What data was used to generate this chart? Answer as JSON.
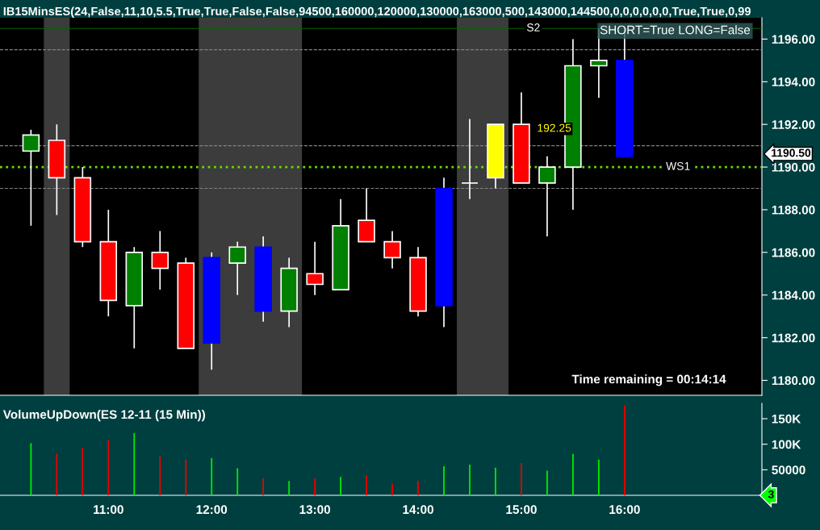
{
  "chart_data": [
    {
      "type": "candlestick",
      "title": "IB15MinsES(24,False,11,10,5.5,True,True,False,False,94500,160000,120000,130000,163000,500,143000,144500,0,0,0,0,0,0,True,True,0,99",
      "x": [
        10.25,
        10.5,
        10.75,
        11,
        11.25,
        11.5,
        11.75,
        12,
        12.25,
        12.5,
        12.75,
        13,
        13.25,
        13.5,
        13.75,
        14,
        14.25,
        14.5,
        14.75,
        15,
        15.25,
        15.5,
        15.75,
        16
      ],
      "ohlc": [
        [
          1190.75,
          1191.75,
          1187.25,
          1191.5
        ],
        [
          1191.25,
          1192,
          1187.75,
          1189.5
        ],
        [
          1189.5,
          1190,
          1186.25,
          1186.5
        ],
        [
          1186.5,
          1188,
          1183,
          1183.75
        ],
        [
          1183.5,
          1186.25,
          1181.5,
          1186
        ],
        [
          1186,
          1187,
          1184.25,
          1185.25
        ],
        [
          1185.5,
          1185.75,
          1181.5,
          1181.5
        ],
        [
          1181.75,
          1186,
          1180.5,
          1185.75
        ],
        [
          1185.5,
          1186.5,
          1184,
          1186.25
        ],
        [
          1186.25,
          1186.75,
          1182.75,
          1183.25
        ],
        [
          1183.25,
          1185.75,
          1182.5,
          1185.25
        ],
        [
          1185,
          1186.5,
          1184,
          1184.5
        ],
        [
          1184.25,
          1188.5,
          1184.25,
          1187.25
        ],
        [
          1187.5,
          1189,
          1186.5,
          1186.5
        ],
        [
          1186.5,
          1187,
          1185.25,
          1185.75
        ],
        [
          1185.75,
          1186.25,
          1183,
          1183.25
        ],
        [
          1183.5,
          1189.5,
          1182.5,
          1189
        ],
        [
          1189.25,
          1192.25,
          1188.5,
          1189.25
        ],
        [
          1189.5,
          1192,
          1189,
          1192
        ],
        [
          1192,
          1193.5,
          1189.25,
          1189.25
        ],
        [
          1189.25,
          1190.5,
          1186.75,
          1190
        ],
        [
          1190,
          1196,
          1188,
          1194.75
        ],
        [
          1194.75,
          1196.5,
          1193.25,
          1195
        ],
        [
          1195,
          1196.5,
          1190.5,
          1190.5
        ]
      ],
      "colors": [
        "#008000",
        "#ff0000",
        "#ff0000",
        "#ff0000",
        "#008000",
        "#ff0000",
        "#ff0000",
        "#0000ff",
        "#008000",
        "#0000ff",
        "#008000",
        "#ff0000",
        "#008000",
        "#ff0000",
        "#ff0000",
        "#ff0000",
        "#0000ff",
        "#ffffff",
        "#ffff00",
        "#ff0000",
        "#008000",
        "#008000",
        "#008000",
        "#0000ff"
      ],
      "xlim": [
        9.95,
        17.33
      ],
      "ylim": [
        1179.3,
        1197
      ],
      "yticks": [
        {
          "value": 1180,
          "label": "1180.00"
        },
        {
          "value": 1182,
          "label": "1182.00"
        },
        {
          "value": 1184,
          "label": "1184.00"
        },
        {
          "value": 1186,
          "label": "1186.00"
        },
        {
          "value": 1188,
          "label": "1188.00"
        },
        {
          "value": 1190,
          "label": "1190.00"
        },
        {
          "value": 1192,
          "label": "1192.00"
        },
        {
          "value": 1194,
          "label": "1194.00"
        },
        {
          "value": 1196,
          "label": "1196.00"
        }
      ],
      "tick_labels": "y",
      "bands": [
        {
          "axis": "x",
          "from": 10.375,
          "to": 10.625,
          "color": "#3c3c3c"
        },
        {
          "axis": "x",
          "from": 11.875,
          "to": 12.875,
          "color": "#3c3c3c"
        },
        {
          "axis": "x",
          "from": 14.375,
          "to": 14.875,
          "color": "#3c3c3c"
        }
      ],
      "ref_lines": [
        {
          "axis": "y",
          "value": 1190,
          "label": "WS1",
          "color": "#66dd00",
          "line_style": "dotted"
        },
        {
          "axis": "y",
          "value": 1196.5,
          "label": "S2",
          "color": "#006600",
          "line_style": "solid"
        },
        {
          "axis": "y",
          "value": 1195.5,
          "color": "#808080",
          "line_style": "dashed"
        },
        {
          "axis": "y",
          "value": 1191,
          "color": "#808080",
          "line_style": "dashed"
        },
        {
          "axis": "y",
          "value": 1189,
          "color": "#808080",
          "line_style": "dashed"
        }
      ],
      "annotations": [
        "SHORT=True LONG=False",
        "Time remaining = 00:14:14",
        {
          "text": "192.25",
          "x": 15,
          "y": 1192
        },
        "1190.50"
      ]
    },
    {
      "type": "bar",
      "title": "VolumeUpDown(ES 12-11 (15 Min))",
      "x": [
        10.25,
        10.5,
        10.75,
        11,
        11.25,
        11.5,
        11.75,
        12,
        12.25,
        12.5,
        12.75,
        13,
        13.25,
        13.5,
        13.75,
        14,
        14.25,
        14.5,
        14.75,
        15,
        15.25,
        15.5,
        15.75,
        16
      ],
      "values": [
        102000,
        81000,
        93000,
        108000,
        122000,
        76000,
        70000,
        73000,
        53000,
        33000,
        28000,
        33000,
        36000,
        39000,
        23000,
        28000,
        57000,
        60000,
        54000,
        63000,
        48000,
        81000,
        70000,
        176000
      ],
      "colors": [
        "#00ee00",
        "#ee0000",
        "#ee0000",
        "#ee0000",
        "#00ee00",
        "#ee0000",
        "#ee0000",
        "#00ee00",
        "#00ee00",
        "#ee0000",
        "#00ee00",
        "#ee0000",
        "#00ee00",
        "#ee0000",
        "#ee0000",
        "#ee0000",
        "#00ee00",
        "#00ee00",
        "#00ee00",
        "#ee0000",
        "#00ee00",
        "#00ee00",
        "#00ee00",
        "#ee0000"
      ],
      "xlim": [
        9.95,
        17.33
      ],
      "xticks": [
        {
          "value": 11,
          "label": "11:00"
        },
        {
          "value": 12,
          "label": "12:00"
        },
        {
          "value": 13,
          "label": "13:00"
        },
        {
          "value": 14,
          "label": "14:00"
        },
        {
          "value": 15,
          "label": "15:00"
        },
        {
          "value": 16,
          "label": "16:00"
        }
      ],
      "ylim": [
        0,
        180000
      ],
      "yticks": [
        50000,
        {
          "value": 100000,
          "label": "100K"
        },
        {
          "value": 150000,
          "label": "150K"
        }
      ],
      "annotations": [
        "3"
      ]
    }
  ]
}
